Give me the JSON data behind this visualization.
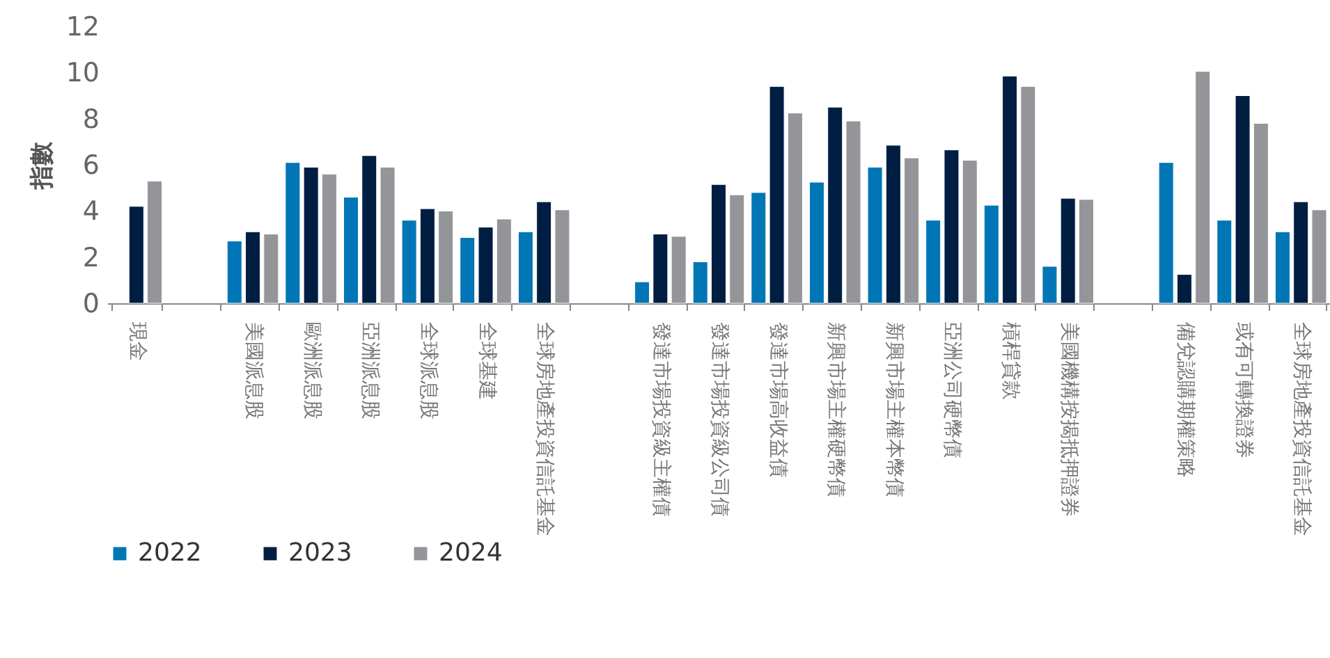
{
  "chart_data": {
    "type": "bar",
    "ylabel": "指數",
    "categories": [
      "現金",
      null,
      "美國派息股",
      "歐洲派息股",
      "亞洲派息股",
      "全球派息股",
      "全球基建",
      "全球房地產投資信託基金",
      null,
      "發達市場投資級主權債",
      "發達市場投資級公司債",
      "發達市場高收益債",
      "新興市場主權硬幣債",
      "新興市場主權本幣債",
      "亞洲公司硬幣債",
      "槓桿貸款",
      "美國機構按揭抵押證券",
      null,
      "備兌認購期權策略",
      "或有可轉換證券",
      "全球房地產投資信託基金"
    ],
    "series": [
      {
        "name": "2022",
        "color": "#0076b6",
        "values": [
          null,
          null,
          2.7,
          6.1,
          4.6,
          3.6,
          2.85,
          3.1,
          null,
          0.93,
          1.8,
          4.8,
          5.25,
          5.9,
          3.6,
          4.25,
          1.6,
          null,
          6.1,
          3.6,
          3.1
        ]
      },
      {
        "name": "2023",
        "color": "#001e42",
        "values": [
          4.2,
          null,
          3.1,
          5.9,
          6.4,
          4.1,
          3.3,
          4.4,
          null,
          3.0,
          5.15,
          9.4,
          8.5,
          6.85,
          6.65,
          9.85,
          4.55,
          null,
          1.25,
          9.0,
          4.4
        ]
      },
      {
        "name": "2024",
        "color": "#939598",
        "values": [
          5.3,
          null,
          3.0,
          5.6,
          5.9,
          4.0,
          3.65,
          4.05,
          null,
          2.9,
          4.7,
          8.25,
          7.9,
          6.3,
          6.2,
          9.4,
          4.5,
          null,
          10.05,
          7.8,
          4.05
        ]
      }
    ],
    "ylim": [
      0,
      12
    ],
    "yticks": [
      0,
      2,
      4,
      6,
      8,
      10,
      12
    ],
    "grid": false,
    "legend": "bottom"
  }
}
